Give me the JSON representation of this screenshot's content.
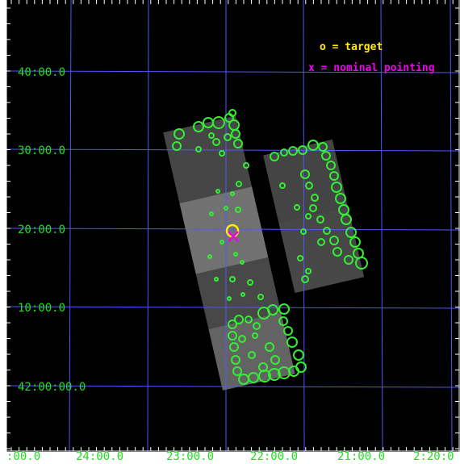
{
  "image": {
    "description_free": true,
    "colors": {
      "background": "#000000",
      "frame": "#ffffff",
      "grid": "#5555ff",
      "labels": "#22dd22",
      "sources": "#33ee33",
      "target": "#ffee00",
      "pointing": "#ee00ee"
    }
  },
  "legend": {
    "target": "o = target",
    "pointing": "x = nominal pointing"
  },
  "dec_labels": [
    "40:00.0",
    "30:00.0",
    "20:00.0",
    "10:00.0",
    "42:00:00.0"
  ],
  "ra_labels": [
    ":00.0",
    "24:00.0",
    "23:00.0",
    "22:00.0",
    "21:00.0",
    "2:20:0"
  ],
  "markers": {
    "target_icon": "circle-icon",
    "pointing_icon": "x-icon"
  }
}
